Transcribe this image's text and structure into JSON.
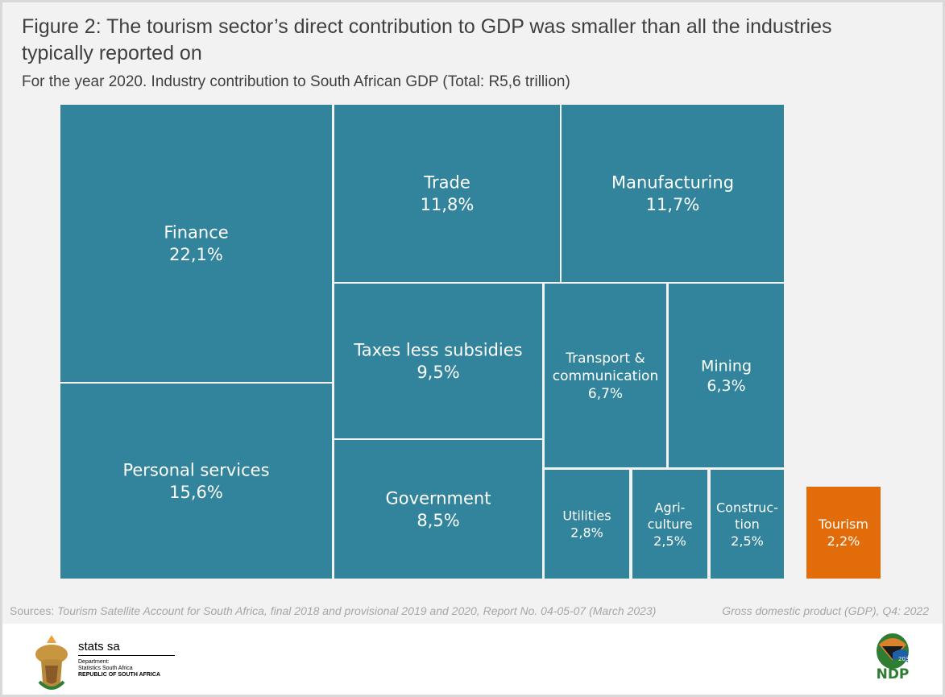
{
  "title": "Figure 2: The tourism sector’s direct contribution to GDP was smaller than all the industries typically reported on",
  "subtitle": "For the year 2020. Industry contribution to South African GDP (Total: R5,6 trillion)",
  "colors": {
    "industry": "#31849B",
    "tourism": "#E36C0A",
    "background": "#F2F2F2"
  },
  "chart_data": {
    "type": "treemap",
    "unit": "% of GDP",
    "items": [
      {
        "lines": [
          "Finance"
        ],
        "value": 22.1,
        "label": "22,1%",
        "highlight": false
      },
      {
        "lines": [
          "Personal services"
        ],
        "value": 15.6,
        "label": "15,6%",
        "highlight": false
      },
      {
        "lines": [
          "Trade"
        ],
        "value": 11.8,
        "label": "11,8%",
        "highlight": false
      },
      {
        "lines": [
          "Manufacturing"
        ],
        "value": 11.7,
        "label": "11,7%",
        "highlight": false
      },
      {
        "lines": [
          "Taxes less subsidies"
        ],
        "value": 9.5,
        "label": "9,5%",
        "highlight": false
      },
      {
        "lines": [
          "Government"
        ],
        "value": 8.5,
        "label": "8,5%",
        "highlight": false
      },
      {
        "lines": [
          "Transport &",
          "communication"
        ],
        "value": 6.7,
        "label": "6,7%",
        "highlight": false
      },
      {
        "lines": [
          "Mining"
        ],
        "value": 6.3,
        "label": "6,3%",
        "highlight": false
      },
      {
        "lines": [
          "Utilities"
        ],
        "value": 2.8,
        "label": "2,8%",
        "highlight": false
      },
      {
        "lines": [
          "Agri-",
          "culture"
        ],
        "value": 2.5,
        "label": "2,5%",
        "highlight": false
      },
      {
        "lines": [
          "Construc-",
          "tion"
        ],
        "value": 2.5,
        "label": "2,5%",
        "highlight": false
      },
      {
        "lines": [
          "Tourism"
        ],
        "value": 2.2,
        "label": "2,2%",
        "highlight": true
      }
    ]
  },
  "sources": {
    "prefix": "Sources: ",
    "text": "Tourism Satellite Account for South Africa, final 2018 and provisional 2019 and 2020, Report No. 04-05-07 (March 2023)",
    "gdp": "Gross domestic product (GDP), Q4: 2022"
  },
  "footer": {
    "statssa_name": "stats sa",
    "dept": "Department:",
    "dept_name": "Statistics South Africa",
    "country": "REPUBLIC OF SOUTH AFRICA",
    "ndp_logo": "NDP",
    "ndp_year": "2030"
  }
}
